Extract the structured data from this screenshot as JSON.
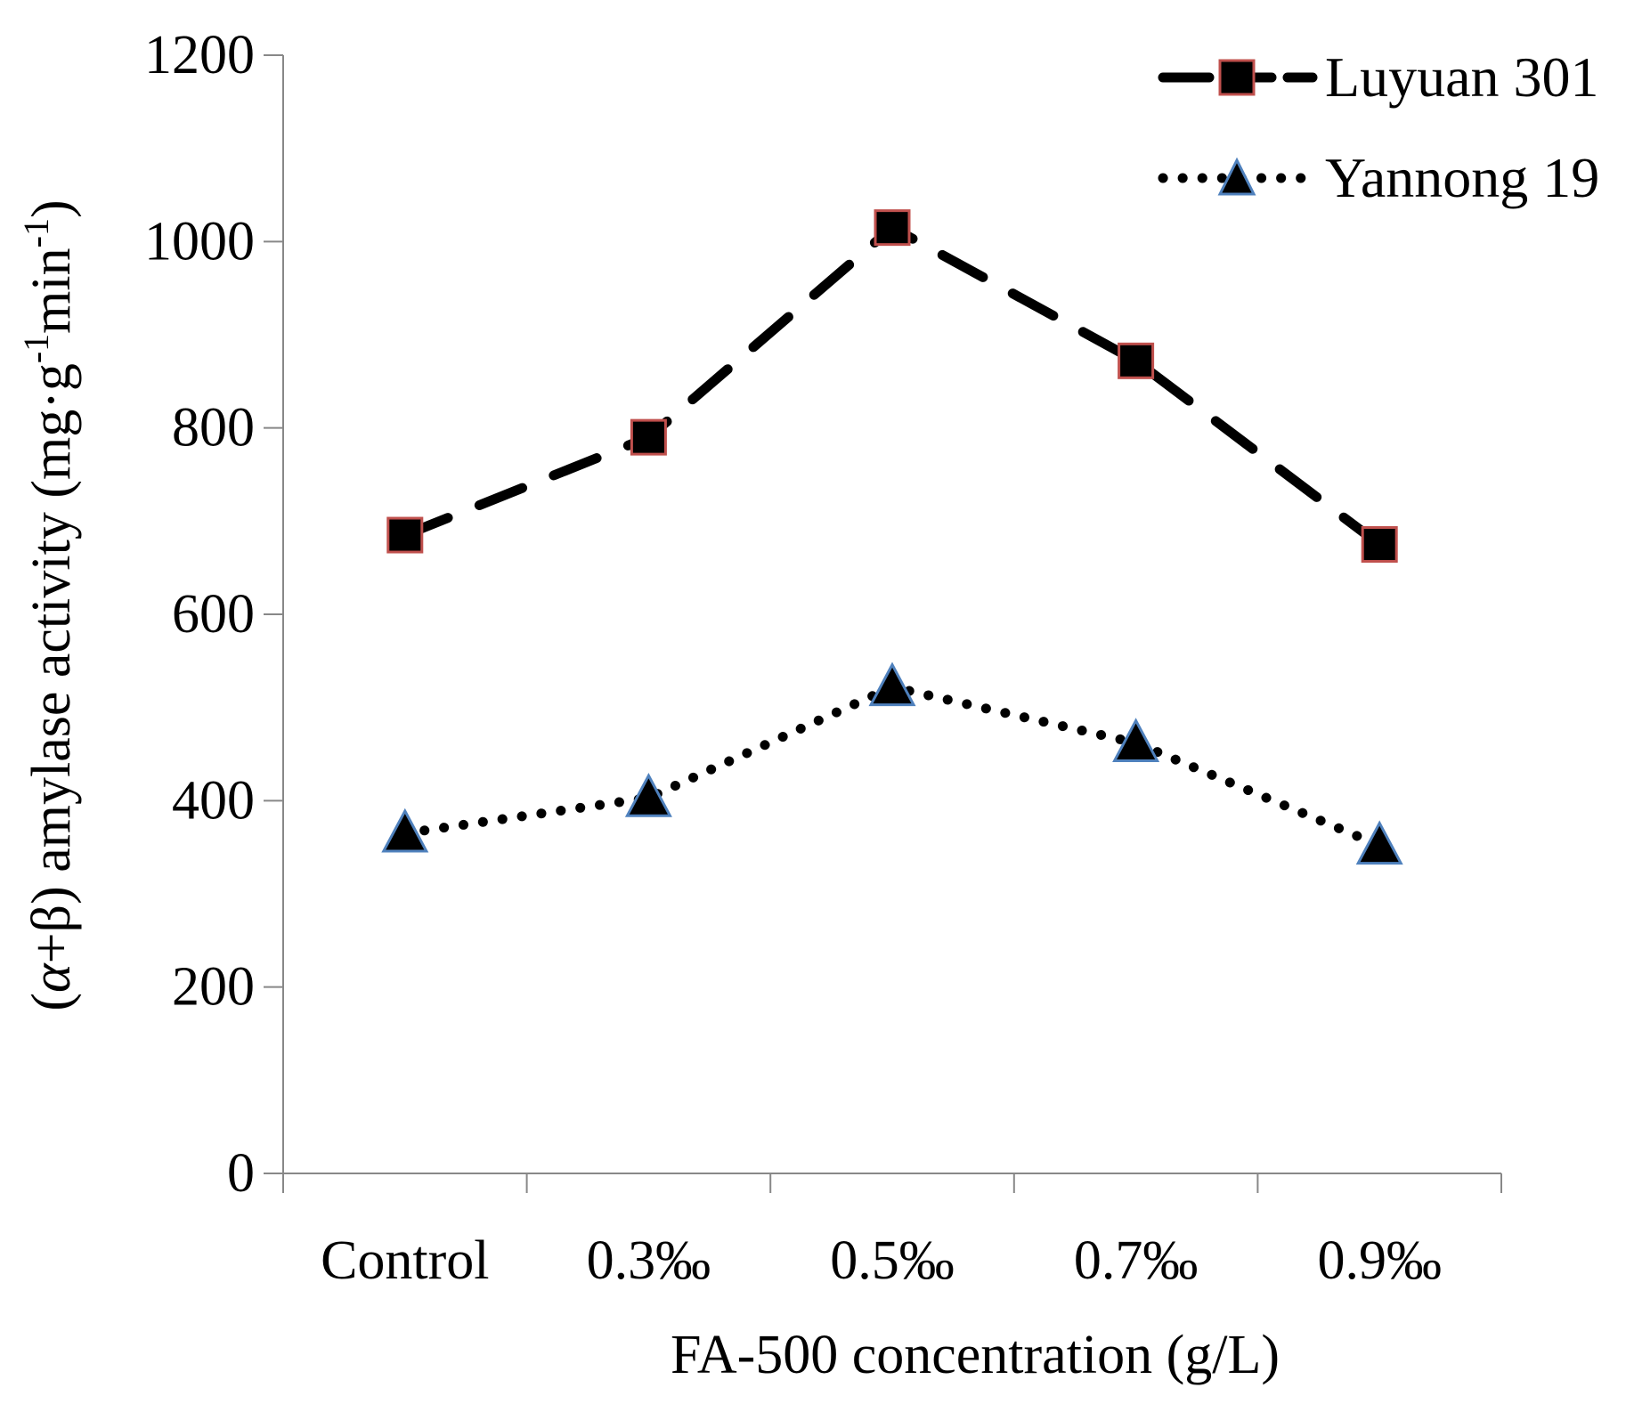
{
  "chart_data": {
    "type": "line",
    "title": "",
    "xlabel": "FA-500 concentration (g/L)",
    "ylabel": {
      "prefix": "(",
      "alpha": "α",
      "middle": "+β) amylase activity (mg·g",
      "sup1": "-1",
      "min": "min",
      "sup2": "-1",
      "suffix": ")"
    },
    "categories": [
      "Control",
      "0.3‰",
      "0.5‰",
      "0.7‰",
      "0.9‰"
    ],
    "ylim": [
      0,
      1200
    ],
    "yticks": [
      "0",
      "200",
      "400",
      "600",
      "800",
      "1000",
      "1200"
    ],
    "grid": false,
    "legend_position": "top-right",
    "series": [
      {
        "name": "Luyuan 301",
        "values": [
          685,
          790,
          1015,
          872,
          675
        ],
        "line_style": "dashed",
        "marker": "square",
        "line_color": "#000000",
        "marker_edge_color": "#c0504d"
      },
      {
        "name": "Yannong 19",
        "values": [
          365,
          403,
          522,
          462,
          352
        ],
        "line_style": "dotted",
        "marker": "triangle",
        "line_color": "#000000",
        "marker_edge_color": "#4f81bd"
      }
    ]
  }
}
